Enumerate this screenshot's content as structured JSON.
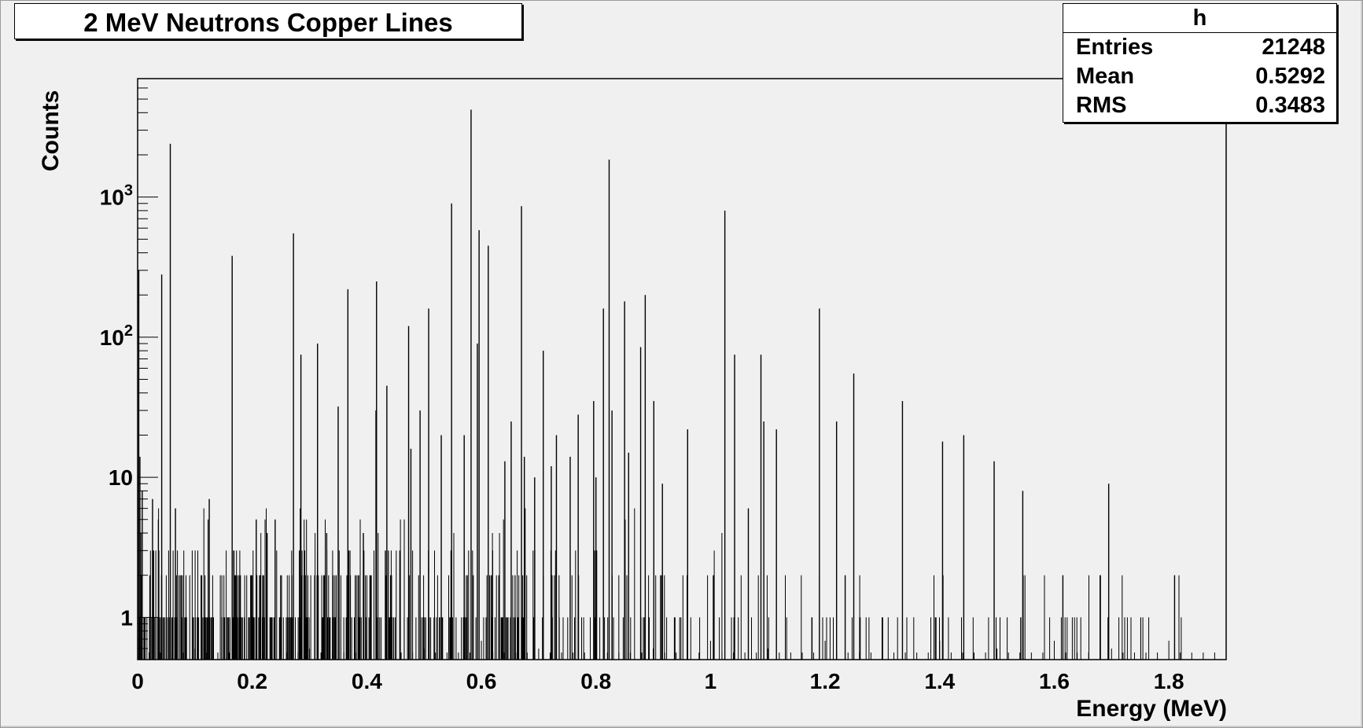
{
  "chart_data": {
    "type": "histogram",
    "title": "2 MeV Neutrons Copper Lines",
    "xlabel": "Energy (MeV)",
    "ylabel": "Counts",
    "xlim": [
      0,
      1.9
    ],
    "ylim": [
      0.5,
      7000
    ],
    "y_scale": "log",
    "x_ticks": [
      "0",
      "0.2",
      "0.4",
      "0.6",
      "0.8",
      "1",
      "1.2",
      "1.4",
      "1.6",
      "1.8"
    ],
    "x_tick_values": [
      0,
      0.2,
      0.4,
      0.6,
      0.8,
      1.0,
      1.2,
      1.4,
      1.6,
      1.8
    ],
    "y_ticks": [
      {
        "value": 1,
        "base": "1",
        "exp": ""
      },
      {
        "value": 10,
        "base": "10",
        "exp": ""
      },
      {
        "value": 100,
        "base": "10",
        "exp": "2"
      },
      {
        "value": 1000,
        "base": "10",
        "exp": "3"
      }
    ],
    "line_color": "#000000",
    "background_color": "#f0f0f0",
    "peaks": [
      {
        "x": 0.002,
        "y": 300
      },
      {
        "x": 0.004,
        "y": 14
      },
      {
        "x": 0.008,
        "y": 8
      },
      {
        "x": 0.026,
        "y": 7
      },
      {
        "x": 0.042,
        "y": 280
      },
      {
        "x": 0.057,
        "y": 2400
      },
      {
        "x": 0.066,
        "y": 6
      },
      {
        "x": 0.125,
        "y": 7
      },
      {
        "x": 0.165,
        "y": 380
      },
      {
        "x": 0.207,
        "y": 5
      },
      {
        "x": 0.226,
        "y": 4
      },
      {
        "x": 0.24,
        "y": 5
      },
      {
        "x": 0.272,
        "y": 550
      },
      {
        "x": 0.285,
        "y": 75
      },
      {
        "x": 0.314,
        "y": 90
      },
      {
        "x": 0.33,
        "y": 4
      },
      {
        "x": 0.35,
        "y": 32
      },
      {
        "x": 0.367,
        "y": 220
      },
      {
        "x": 0.394,
        "y": 4
      },
      {
        "x": 0.416,
        "y": 30
      },
      {
        "x": 0.417,
        "y": 250
      },
      {
        "x": 0.435,
        "y": 45
      },
      {
        "x": 0.473,
        "y": 120
      },
      {
        "x": 0.477,
        "y": 16
      },
      {
        "x": 0.493,
        "y": 30
      },
      {
        "x": 0.508,
        "y": 160
      },
      {
        "x": 0.53,
        "y": 20
      },
      {
        "x": 0.548,
        "y": 900
      },
      {
        "x": 0.57,
        "y": 20
      },
      {
        "x": 0.582,
        "y": 4200
      },
      {
        "x": 0.593,
        "y": 90
      },
      {
        "x": 0.596,
        "y": 580
      },
      {
        "x": 0.612,
        "y": 450
      },
      {
        "x": 0.641,
        "y": 13
      },
      {
        "x": 0.652,
        "y": 25
      },
      {
        "x": 0.67,
        "y": 860
      },
      {
        "x": 0.675,
        "y": 14
      },
      {
        "x": 0.693,
        "y": 10
      },
      {
        "x": 0.708,
        "y": 80
      },
      {
        "x": 0.722,
        "y": 12
      },
      {
        "x": 0.731,
        "y": 20
      },
      {
        "x": 0.755,
        "y": 14
      },
      {
        "x": 0.769,
        "y": 28
      },
      {
        "x": 0.796,
        "y": 35
      },
      {
        "x": 0.8,
        "y": 10
      },
      {
        "x": 0.813,
        "y": 160
      },
      {
        "x": 0.823,
        "y": 1850
      },
      {
        "x": 0.828,
        "y": 30
      },
      {
        "x": 0.85,
        "y": 180
      },
      {
        "x": 0.857,
        "y": 15
      },
      {
        "x": 0.878,
        "y": 85
      },
      {
        "x": 0.886,
        "y": 200
      },
      {
        "x": 0.901,
        "y": 35
      },
      {
        "x": 0.916,
        "y": 9
      },
      {
        "x": 0.96,
        "y": 22
      },
      {
        "x": 1.025,
        "y": 800
      },
      {
        "x": 1.042,
        "y": 75
      },
      {
        "x": 1.066,
        "y": 6
      },
      {
        "x": 1.088,
        "y": 75
      },
      {
        "x": 1.093,
        "y": 25
      },
      {
        "x": 1.115,
        "y": 22
      },
      {
        "x": 1.19,
        "y": 160
      },
      {
        "x": 1.22,
        "y": 25
      },
      {
        "x": 1.235,
        "y": 2
      },
      {
        "x": 1.25,
        "y": 55
      },
      {
        "x": 1.335,
        "y": 35
      },
      {
        "x": 1.405,
        "y": 18
      },
      {
        "x": 1.442,
        "y": 20
      },
      {
        "x": 1.495,
        "y": 13
      },
      {
        "x": 1.545,
        "y": 8
      },
      {
        "x": 1.615,
        "y": 2
      },
      {
        "x": 1.68,
        "y": 2
      },
      {
        "x": 1.695,
        "y": 9
      },
      {
        "x": 1.81,
        "y": 2
      }
    ]
  },
  "stats_box": {
    "name": "h",
    "entries_label": "Entries",
    "entries_value": "21248",
    "mean_label": "Mean",
    "mean_value": "0.5292",
    "rms_label": "RMS",
    "rms_value": "0.3483"
  }
}
